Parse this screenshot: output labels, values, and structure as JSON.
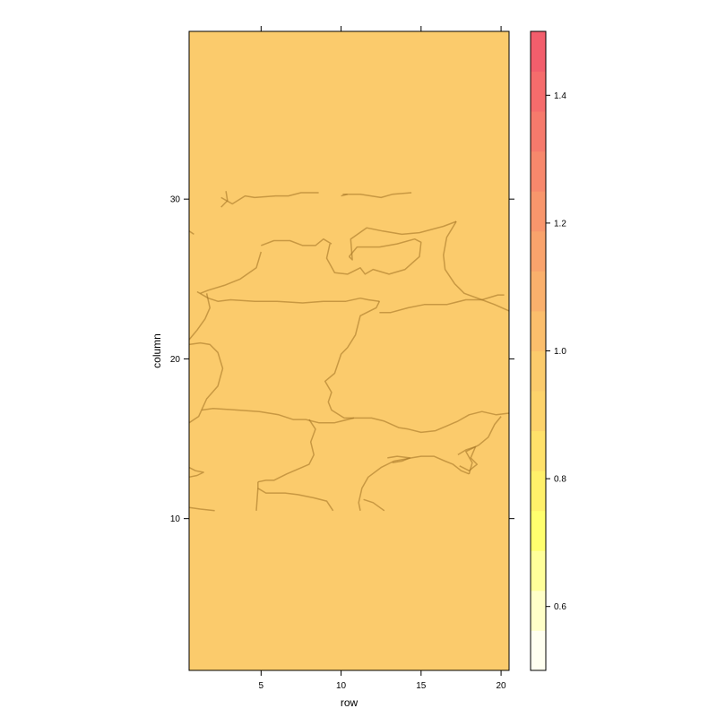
{
  "chart_data": {
    "type": "heatmap",
    "xlabel": "row",
    "ylabel": "column",
    "xlim": [
      0.5,
      20.5
    ],
    "ylim": [
      0.5,
      40.5
    ],
    "x_ticks": [
      5,
      10,
      15,
      20
    ],
    "y_ticks": [
      10,
      20,
      30
    ],
    "rows": 20,
    "columns": 40,
    "fill_value": 1.0,
    "fill_color": "#FBCB6C",
    "boundary_color": "#9E7020",
    "colorkey": {
      "range": [
        0.5,
        1.5
      ],
      "ticks": [
        0.6,
        0.8,
        1.0,
        1.2,
        1.4
      ],
      "colors": [
        "#FFFFF0",
        "#FFFFC8",
        "#FFFF9A",
        "#FFFF6E",
        "#FFF06A",
        "#FFE16A",
        "#FDD36B",
        "#FBCB6C",
        "#FBBE6C",
        "#FAB06C",
        "#F9A36C",
        "#F8966C",
        "#F7886C",
        "#F67A6C",
        "#F56C6C",
        "#F25E6C"
      ]
    }
  }
}
